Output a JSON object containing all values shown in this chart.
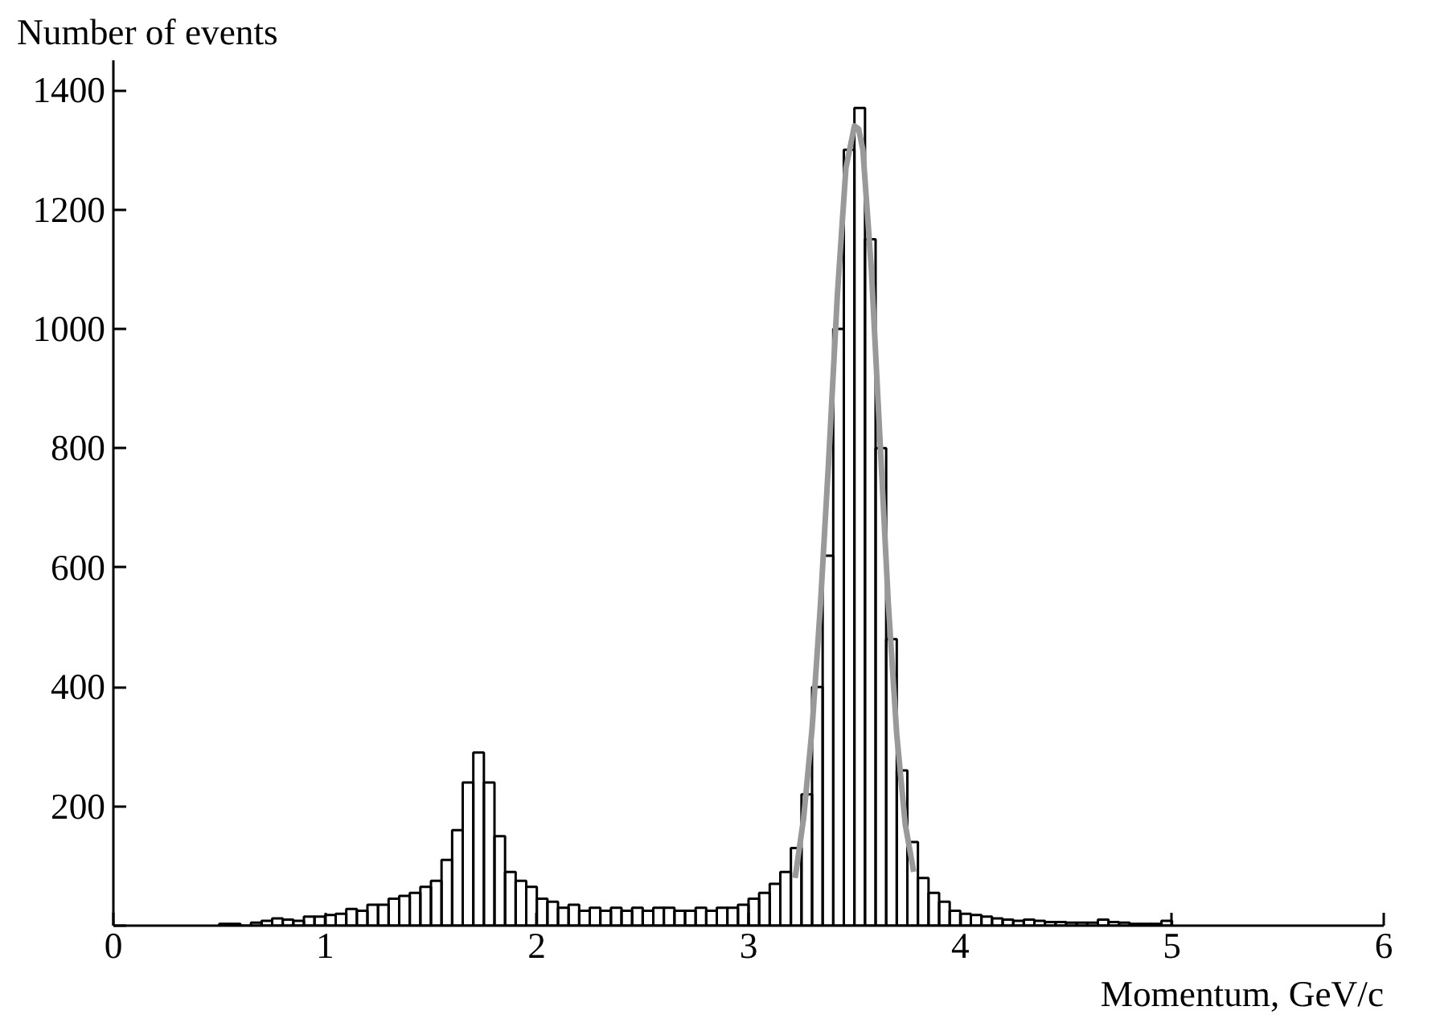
{
  "chart_data": {
    "type": "histogram",
    "xlabel": "Momentum, GeV/c",
    "ylabel": "Number of events",
    "xlim": [
      0,
      6
    ],
    "xticks": [
      0,
      1,
      2,
      3,
      4,
      5,
      6
    ],
    "ylim": [
      0,
      1450
    ],
    "yticks": [
      {
        "value": 0,
        "label": null
      },
      200,
      400,
      600,
      800,
      1000,
      1200,
      1400
    ],
    "grid": false,
    "series": [
      {
        "color": "#000000",
        "bins": [
          0.5,
          0.55,
          0.6,
          0.65,
          0.7,
          0.75,
          0.8,
          0.85,
          0.9,
          0.95,
          1.0,
          1.05,
          1.1,
          1.15,
          1.2,
          1.25,
          1.3,
          1.35,
          1.4,
          1.45,
          1.5,
          1.55,
          1.6,
          1.65,
          1.7,
          1.75,
          1.8,
          1.85,
          1.9,
          1.95,
          2.0,
          2.05,
          2.1,
          2.15,
          2.2,
          2.25,
          2.3,
          2.35,
          2.4,
          2.45,
          2.5,
          2.55,
          2.6,
          2.65,
          2.7,
          2.75,
          2.8,
          2.85,
          2.9,
          2.95,
          3.0,
          3.05,
          3.1,
          3.15,
          3.2,
          3.25,
          3.3,
          3.35,
          3.4,
          3.45,
          3.5,
          3.55,
          3.6,
          3.65,
          3.7,
          3.75,
          3.8,
          3.85,
          3.9,
          3.95,
          4.0,
          4.05,
          4.1,
          4.15,
          4.2,
          4.25,
          4.3,
          4.35,
          4.4,
          4.45,
          4.5,
          4.55,
          4.6,
          4.65,
          4.7,
          4.75,
          4.8,
          4.85,
          4.9,
          4.95,
          5.0
        ],
        "values": [
          3,
          3,
          0,
          5,
          8,
          12,
          10,
          8,
          15,
          15,
          18,
          20,
          28,
          25,
          35,
          35,
          45,
          50,
          55,
          65,
          75,
          110,
          160,
          240,
          290,
          240,
          150,
          90,
          75,
          65,
          45,
          40,
          30,
          35,
          25,
          30,
          25,
          30,
          25,
          30,
          25,
          30,
          30,
          25,
          25,
          30,
          25,
          30,
          30,
          35,
          45,
          55,
          70,
          90,
          130,
          220,
          400,
          620,
          1000,
          1300,
          1370,
          1150,
          800,
          480,
          260,
          140,
          80,
          55,
          40,
          25,
          20,
          18,
          15,
          12,
          10,
          8,
          10,
          8,
          6,
          6,
          5,
          5,
          5,
          10,
          6,
          5,
          3,
          3,
          3,
          8
        ]
      },
      {
        "type": "line",
        "color": "#999999",
        "line_style": "solid",
        "x": [
          3.22,
          3.26,
          3.3,
          3.34,
          3.38,
          3.42,
          3.46,
          3.5,
          3.52,
          3.54,
          3.58,
          3.62,
          3.66,
          3.7,
          3.74,
          3.78
        ],
        "values": [
          80,
          180,
          330,
          540,
          790,
          1060,
          1270,
          1340,
          1335,
          1300,
          1100,
          820,
          540,
          320,
          170,
          90
        ]
      }
    ]
  }
}
